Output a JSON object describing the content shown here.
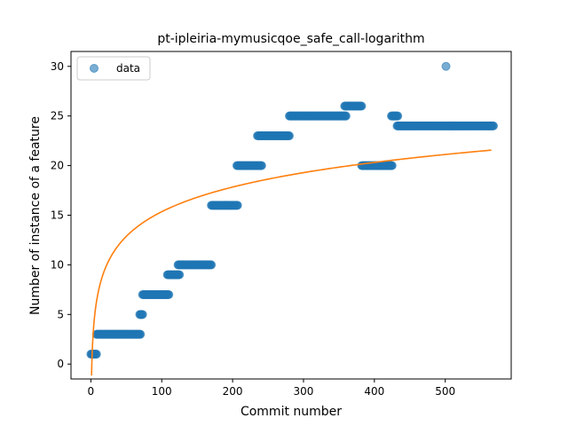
{
  "chart_data": {
    "type": "scatter",
    "title": "pt-ipleiria-mymusicqoe_safe_call-logarithm",
    "xlabel": "Commit number",
    "ylabel": "Number of instance of a feature",
    "xlim": [
      -28,
      593
    ],
    "ylim": [
      -1.5,
      31.5
    ],
    "xticks": [
      0,
      100,
      200,
      300,
      400,
      500
    ],
    "yticks": [
      0,
      5,
      10,
      15,
      20,
      25,
      30
    ],
    "grid": false,
    "legend": {
      "placement": "top-left",
      "entries": [
        "data"
      ]
    },
    "colors": {
      "points": "#1f77b4",
      "fit": "#ff7f0e"
    },
    "series": [
      {
        "name": "data",
        "kind": "scatter",
        "segments": [
          {
            "x_start": 0,
            "x_end": 8,
            "y": 1
          },
          {
            "x_start": 8,
            "x_end": 70,
            "y": 3
          },
          {
            "x_start": 69,
            "x_end": 73,
            "y": 5
          },
          {
            "x_start": 73,
            "x_end": 110,
            "y": 7
          },
          {
            "x_start": 108,
            "x_end": 125,
            "y": 9
          },
          {
            "x_start": 123,
            "x_end": 170,
            "y": 10
          },
          {
            "x_start": 170,
            "x_end": 207,
            "y": 16
          },
          {
            "x_start": 206,
            "x_end": 241,
            "y": 20
          },
          {
            "x_start": 235,
            "x_end": 280,
            "y": 23
          },
          {
            "x_start": 280,
            "x_end": 360,
            "y": 25
          },
          {
            "x_start": 358,
            "x_end": 382,
            "y": 26
          },
          {
            "x_start": 382,
            "x_end": 425,
            "y": 20
          },
          {
            "x_start": 424,
            "x_end": 433,
            "y": 25
          },
          {
            "x_start": 432,
            "x_end": 568,
            "y": 24
          }
        ],
        "points": [
          {
            "x": 501,
            "y": 30
          }
        ]
      },
      {
        "kind": "line",
        "model": "logarithmic fit",
        "x_range": [
          1,
          565
        ],
        "samples": [
          {
            "x": 1,
            "y": 0.4
          },
          {
            "x": 10,
            "y": 5.5
          },
          {
            "x": 50,
            "y": 11.7
          },
          {
            "x": 100,
            "y": 14.6
          },
          {
            "x": 200,
            "y": 18.2
          },
          {
            "x": 300,
            "y": 19.6
          },
          {
            "x": 400,
            "y": 20.8
          },
          {
            "x": 500,
            "y": 21.5
          },
          {
            "x": 565,
            "y": 22.0
          }
        ]
      }
    ]
  }
}
